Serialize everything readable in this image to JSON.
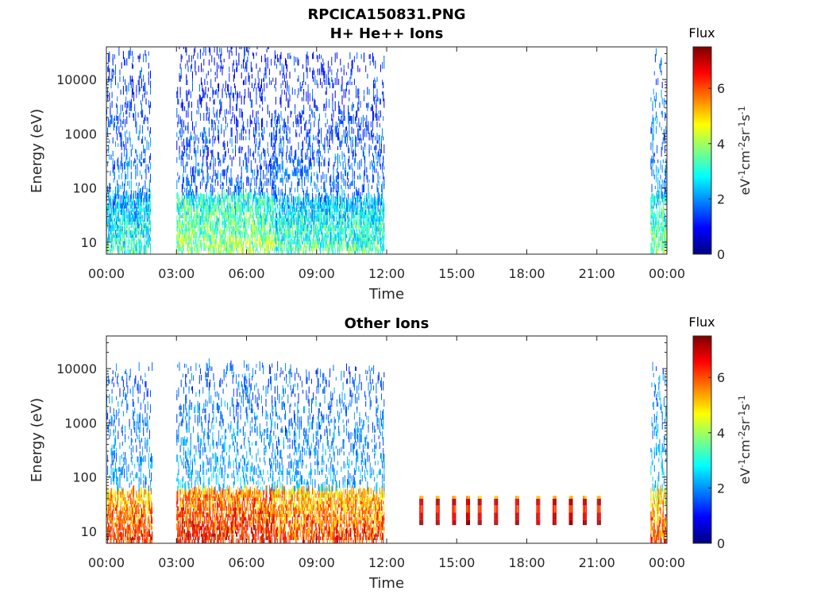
{
  "figure": {
    "title_line1": "RPCICA150831.PNG",
    "title_line2": "H+ He++ Ions"
  },
  "chart_data": [
    {
      "type": "heatmap",
      "title": "H+ He++ Ions",
      "xlabel": "Time",
      "ylabel": "Energy (eV)",
      "x_ticks": [
        "00:00",
        "03:00",
        "06:00",
        "09:00",
        "12:00",
        "15:00",
        "18:00",
        "21:00",
        "00:00"
      ],
      "x_range_hours": [
        0,
        24
      ],
      "y_scale": "log",
      "y_ticks": [
        "10",
        "100",
        "1000",
        "10000"
      ],
      "y_range": [
        6,
        40000
      ],
      "colorbar": {
        "label": "Flux",
        "unit": "eV-1cm-2sr-1s-1",
        "ticks": [
          "0",
          "2",
          "4",
          "6"
        ],
        "range": [
          0,
          7.5
        ],
        "colormap": "jet"
      },
      "segments": [
        {
          "start": 0.0,
          "end": 1.9,
          "low_flux": 3.2,
          "high_flux": 1.2,
          "max_energy": 30000
        },
        {
          "start": 3.0,
          "end": 7.2,
          "low_flux": 4.0,
          "high_flux": 1.0,
          "max_energy": 40000
        },
        {
          "start": 7.2,
          "end": 11.9,
          "low_flux": 3.4,
          "high_flux": 1.1,
          "max_energy": 25000
        },
        {
          "start": 23.3,
          "end": 24.0,
          "low_flux": 3.8,
          "high_flux": 1.4,
          "max_energy": 30000
        }
      ]
    },
    {
      "type": "heatmap",
      "title": "Other Ions",
      "xlabel": "Time",
      "ylabel": "Energy (eV)",
      "x_ticks": [
        "00:00",
        "03:00",
        "06:00",
        "09:00",
        "12:00",
        "15:00",
        "18:00",
        "21:00",
        "00:00"
      ],
      "x_range_hours": [
        0,
        24
      ],
      "y_scale": "log",
      "y_ticks": [
        "10",
        "100",
        "1000",
        "10000"
      ],
      "y_range": [
        6,
        40000
      ],
      "colorbar": {
        "label": "Flux",
        "unit": "eV-1cm-2sr-1s-1",
        "ticks": [
          "0",
          "2",
          "4",
          "6"
        ],
        "range": [
          0,
          7.5
        ],
        "colormap": "jet"
      },
      "segments": [
        {
          "start": 0.0,
          "end": 1.95,
          "low_flux": 6.3,
          "high_flux": 1.5,
          "max_energy": 10000
        },
        {
          "start": 3.0,
          "end": 7.2,
          "low_flux": 6.6,
          "high_flux": 1.6,
          "max_energy": 11000
        },
        {
          "start": 7.2,
          "end": 11.9,
          "low_flux": 6.2,
          "high_flux": 1.5,
          "max_energy": 10000
        },
        {
          "start": 23.3,
          "end": 24.0,
          "low_flux": 6.0,
          "high_flux": 1.8,
          "max_energy": 10000
        }
      ],
      "bursts": [
        13.4,
        14.1,
        14.8,
        15.4,
        15.9,
        16.6,
        17.5,
        18.4,
        19.1,
        19.8,
        20.4,
        21.0
      ]
    }
  ]
}
